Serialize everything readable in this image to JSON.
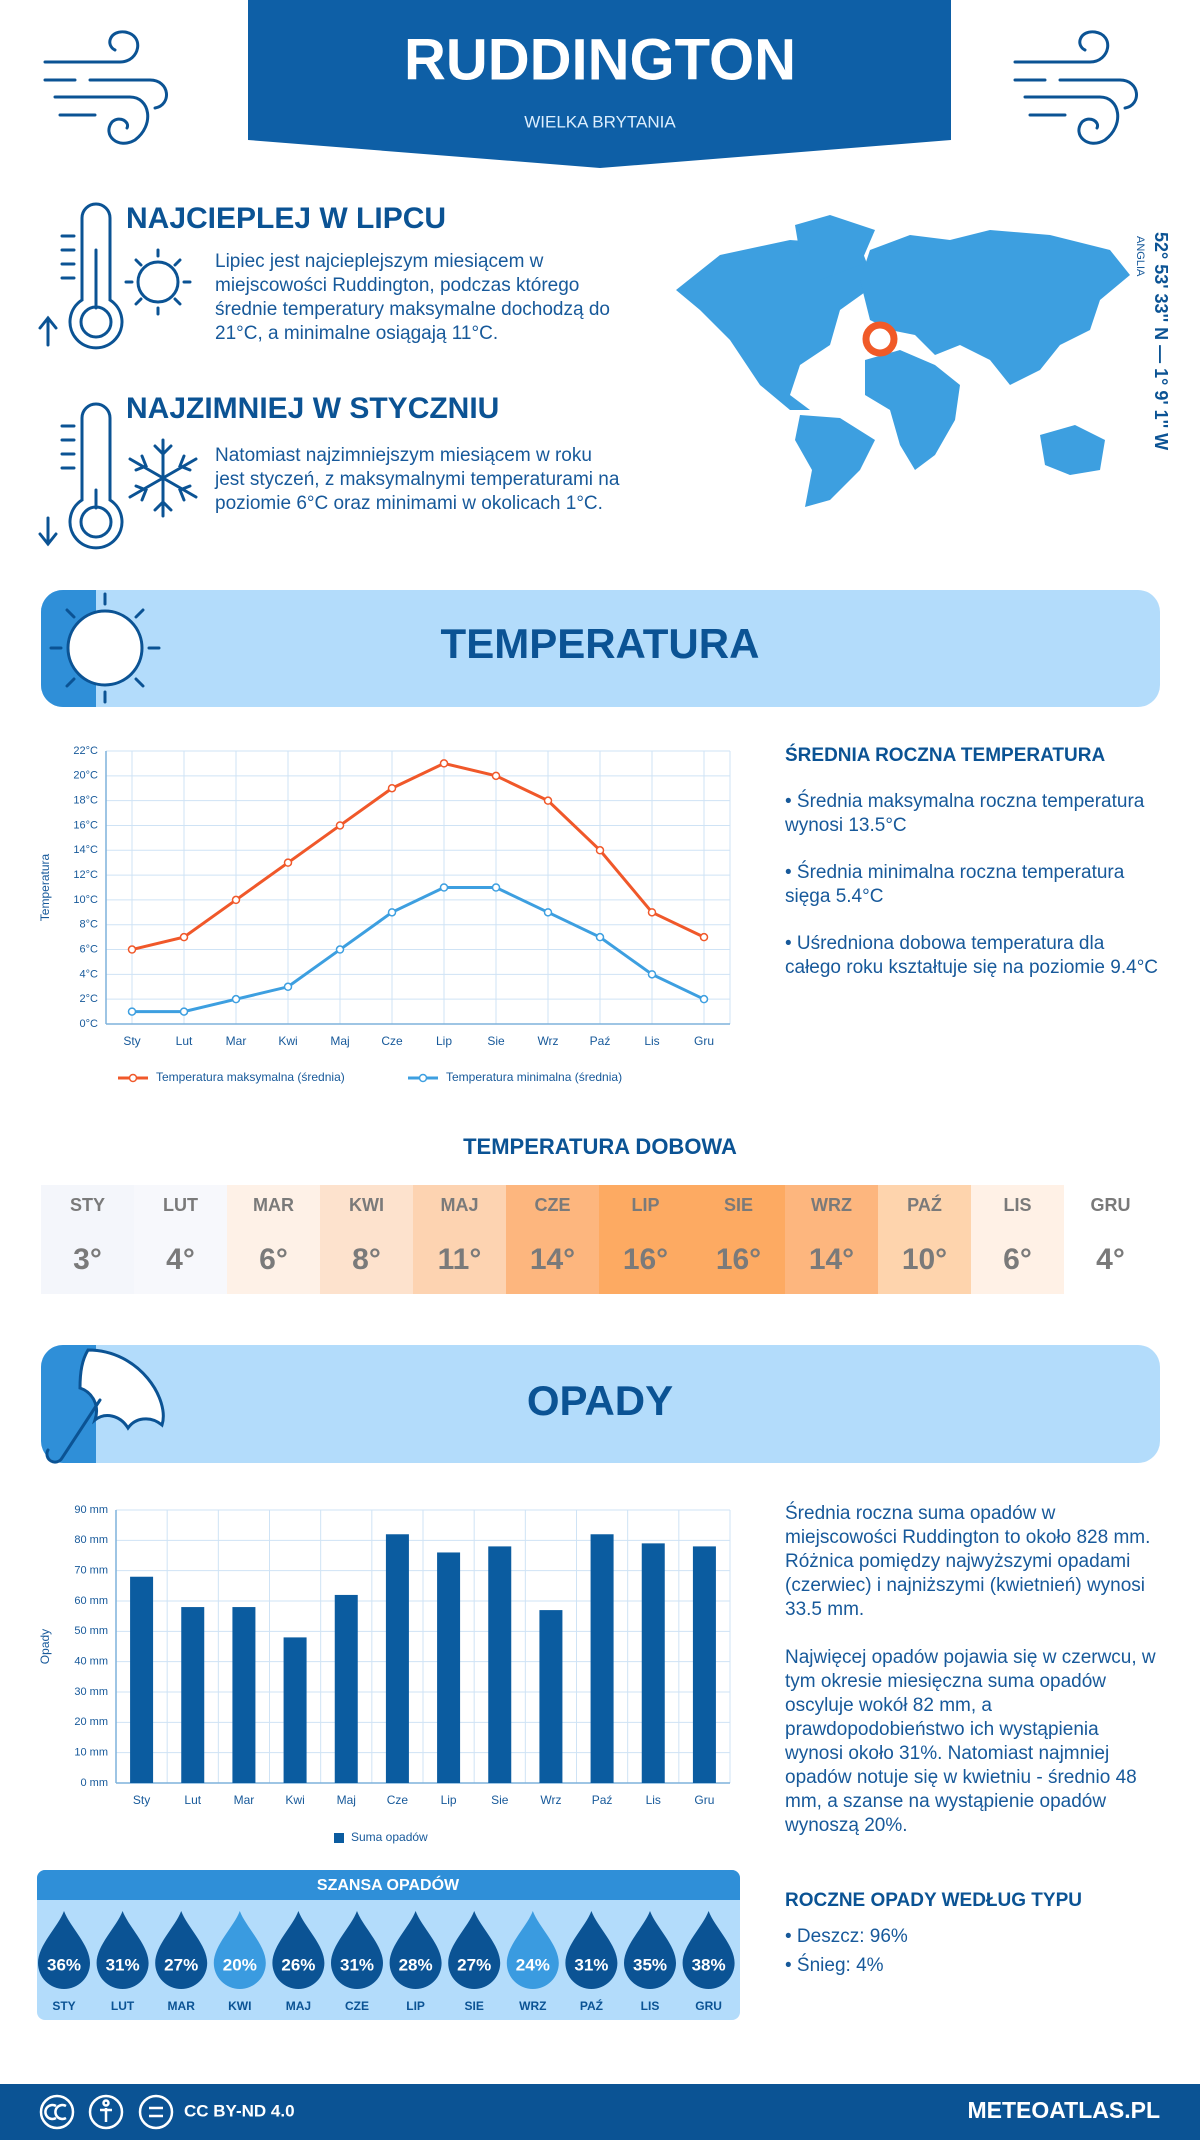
{
  "header": {
    "title": "RUDDINGTON",
    "subtitle": "WIELKA BRYTANIA"
  },
  "warmest": {
    "title": "NAJCIEPLEJ W LIPCU",
    "text": "Lipiec jest najcieplejszym miesiącem w miejscowości Ruddington, podczas którego średnie temperatury maksymalne dochodzą do 21°C, a minimalne osiągają 11°C."
  },
  "coldest": {
    "title": "NAJZIMNIEJ W STYCZNIU",
    "text": "Natomiast najzimniejszym miesiącem w roku jest styczeń, z maksymalnymi temperaturami na poziomie 6°C oraz minimami w okolicach 1°C."
  },
  "location": {
    "coordinates": "52° 53' 33'' N — 1° 9' 1'' W",
    "region": "ANGLIA"
  },
  "temperature": {
    "title": "TEMPERATURA",
    "summary": {
      "title": "ŚREDNIA ROCZNA TEMPERATURA",
      "items": [
        "• Średnia maksymalna roczna temperatura wynosi 13.5°C",
        "• Średnia minimalna roczna temperatura sięga 5.4°C",
        "• Uśredniona dobowa temperatura dla całego roku kształtuje się na poziomie 9.4°C"
      ]
    }
  },
  "chart_data": [
    {
      "type": "line",
      "y_label": "Temperatura",
      "categories": [
        "Sty",
        "Lut",
        "Mar",
        "Kwi",
        "Maj",
        "Cze",
        "Lip",
        "Sie",
        "Wrz",
        "Paź",
        "Lis",
        "Gru"
      ],
      "series": [
        {
          "name": "Temperatura maksymalna (średnia)",
          "color": "#f0582a",
          "values": [
            6,
            7,
            10,
            13,
            16,
            19,
            21,
            20,
            18,
            14,
            9,
            7
          ]
        },
        {
          "name": "Temperatura minimalna (średnia)",
          "color": "#3d9fe0",
          "values": [
            1,
            1,
            2,
            3,
            6,
            9,
            11,
            11,
            9,
            7,
            4,
            2
          ]
        }
      ],
      "ylim": [
        0,
        22
      ],
      "yticks": [
        {
          "value": 0,
          "label": "0°C"
        },
        {
          "value": 2,
          "label": "2°C"
        },
        {
          "value": 4,
          "label": "4°C"
        },
        {
          "value": 6,
          "label": "6°C"
        },
        {
          "value": 8,
          "label": "8°C"
        },
        {
          "value": 10,
          "label": "10°C"
        },
        {
          "value": 12,
          "label": "12°C"
        },
        {
          "value": 14,
          "label": "14°C"
        },
        {
          "value": 16,
          "label": "16°C"
        },
        {
          "value": 18,
          "label": "18°C"
        },
        {
          "value": 20,
          "label": "20°C"
        },
        {
          "value": 22,
          "label": "22°C"
        }
      ],
      "grid": true,
      "legend": "bottom"
    },
    {
      "type": "bar",
      "y_label": "Opady",
      "categories": [
        "Sty",
        "Lut",
        "Mar",
        "Kwi",
        "Maj",
        "Cze",
        "Lip",
        "Sie",
        "Wrz",
        "Paź",
        "Lis",
        "Gru"
      ],
      "series": [
        {
          "name": "Suma opadów",
          "color": "#0b5ca0",
          "values": [
            68,
            58,
            58,
            48,
            62,
            82,
            76,
            78,
            57,
            82,
            79,
            78
          ]
        }
      ],
      "ylim": [
        0,
        90
      ],
      "yticks": [
        {
          "value": 0,
          "label": "0 mm"
        },
        {
          "value": 10,
          "label": "10 mm"
        },
        {
          "value": 20,
          "label": "20 mm"
        },
        {
          "value": 30,
          "label": "30 mm"
        },
        {
          "value": 40,
          "label": "40 mm"
        },
        {
          "value": 50,
          "label": "50 mm"
        },
        {
          "value": 60,
          "label": "60 mm"
        },
        {
          "value": 70,
          "label": "70 mm"
        },
        {
          "value": 80,
          "label": "80 mm"
        },
        {
          "value": 90,
          "label": "90 mm"
        }
      ],
      "grid": true,
      "legend": "bottom"
    }
  ],
  "daily_temperature": {
    "title": "TEMPERATURA DOBOWA",
    "months": [
      "STY",
      "LUT",
      "MAR",
      "KWI",
      "MAJ",
      "CZE",
      "LIP",
      "SIE",
      "WRZ",
      "PAŹ",
      "LIS",
      "GRU"
    ],
    "values": [
      "3°",
      "4°",
      "6°",
      "8°",
      "11°",
      "14°",
      "16°",
      "16°",
      "14°",
      "10°",
      "6°",
      "4°"
    ],
    "colors": [
      "#f4f6fb",
      "#f7f8fc",
      "#fef1e7",
      "#fde2cd",
      "#fdd3b1",
      "#fdb67e",
      "#fdaa62",
      "#fdaa62",
      "#fdb67e",
      "#fed4ad",
      "#fff1e6",
      "#ffffff"
    ]
  },
  "precipitation": {
    "title": "OPADY",
    "text": [
      "Średnia roczna suma opadów w miejscowości Ruddington to około 828 mm. Różnica pomiędzy najwyższymi opadami (czerwiec) i najniższymi (kwietnień) wynosi 33.5 mm.",
      "Najwięcej opadów pojawia się w czerwcu, w tym okresie miesięczna suma opadów oscyluje wokół 82 mm, a prawdopodobieństwo ich wystąpienia wynosi około 31%. Natomiast najmniej opadów notuje się w kwietniu - średnio 48 mm, a szanse na wystąpienie opadów wynoszą 20%."
    ],
    "chance": {
      "title": "SZANSA OPADÓW",
      "months": [
        "STY",
        "LUT",
        "MAR",
        "KWI",
        "MAJ",
        "CZE",
        "LIP",
        "SIE",
        "WRZ",
        "PAŹ",
        "LIS",
        "GRU"
      ],
      "values": [
        "36%",
        "31%",
        "27%",
        "20%",
        "26%",
        "31%",
        "28%",
        "27%",
        "24%",
        "31%",
        "35%",
        "38%"
      ],
      "colors": [
        "#0b5394",
        "#0b5394",
        "#0b5394",
        "#3a9be0",
        "#0b5394",
        "#0b5394",
        "#0b5394",
        "#0b5394",
        "#3a9be0",
        "#0b5394",
        "#0b5394",
        "#0b5394"
      ]
    },
    "by_type": {
      "title": "ROCZNE OPADY WEDŁUG TYPU",
      "items": [
        "• Deszcz: 96%",
        "• Śnieg: 4%"
      ]
    }
  },
  "footer": {
    "license": "CC BY-ND 4.0",
    "site": "METEOATLAS.PL"
  }
}
